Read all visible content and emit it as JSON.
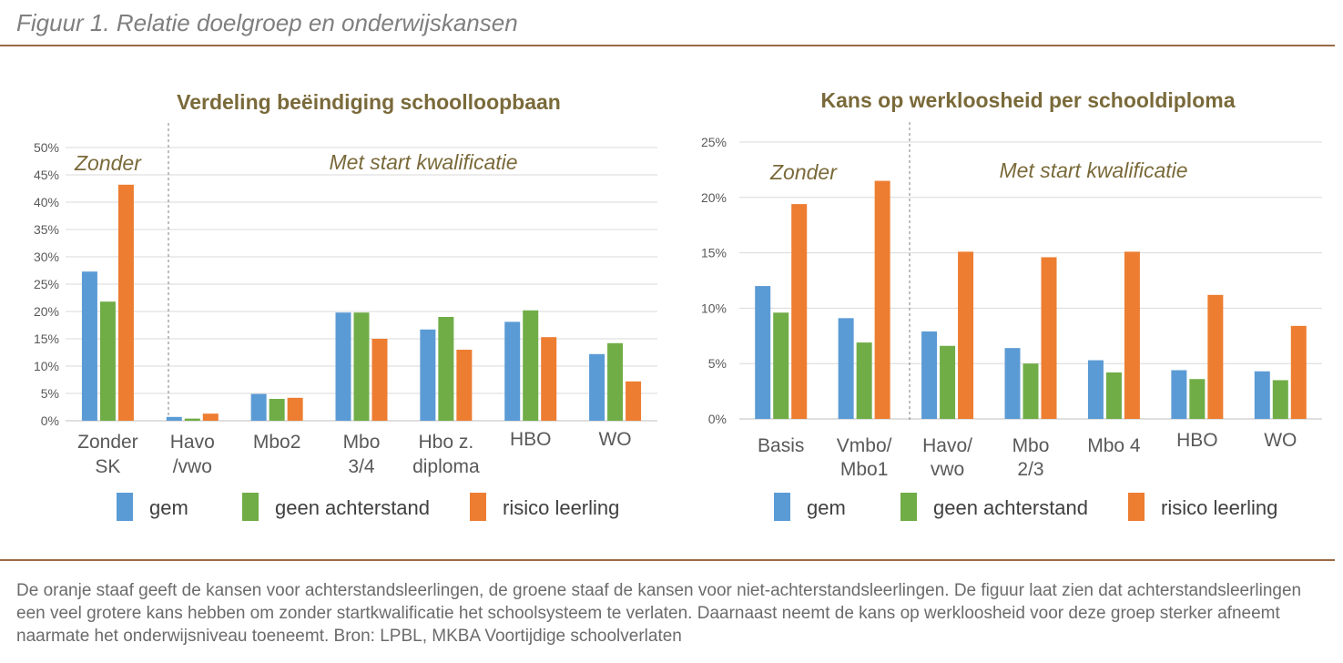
{
  "figure_title": "Figuur 1. Relatie doelgroep en onderwijskansen",
  "caption": "De oranje staaf geeft de kansen voor achterstandsleerlingen, de groene staaf de kansen voor niet-achterstandsleerlingen. De figuur laat zien dat achterstandsleerlingen een veel grotere kans hebben om zonder startkwalificatie het schoolsysteem te verlaten. Daarnaast neemt de kans op werkloosheid voor deze groep sterker afneemt naarmate het onderwijsniveau toeneemt. Bron: LPBL, MKBA Voortijdige schoolverlaten",
  "colors": {
    "gem": "#5b9bd5",
    "geen_achterstand": "#70ad47",
    "risico_leerling": "#ed7d31"
  },
  "chart_data": [
    {
      "type": "bar",
      "title": "Verdeling beëindiging schoolloopbaan",
      "categories": [
        [
          "Zonder",
          "SK"
        ],
        [
          "Havo",
          "/vwo"
        ],
        [
          "Mbo2"
        ],
        [
          "Mbo",
          "3/4"
        ],
        [
          "Hbo z.",
          "diploma"
        ],
        [
          "HBO"
        ],
        [
          "WO"
        ]
      ],
      "series": [
        {
          "name": "gem",
          "values": [
            27.3,
            0.7,
            4.9,
            19.8,
            16.7,
            18.1,
            12.2
          ]
        },
        {
          "name": "geen achterstand",
          "values": [
            21.8,
            0.4,
            4.0,
            19.8,
            19.0,
            20.2,
            14.2
          ]
        },
        {
          "name": "risico leerling",
          "values": [
            43.2,
            1.3,
            4.2,
            15.0,
            13.0,
            15.3,
            7.2
          ]
        }
      ],
      "ylim": [
        0,
        50
      ],
      "yticks": [
        "0%",
        "5%",
        "10%",
        "15%",
        "20%",
        "25%",
        "30%",
        "35%",
        "40%",
        "45%",
        "50%"
      ],
      "group_labels": [
        "Zonder",
        "Met start kwalificatie"
      ],
      "grid": true,
      "legend": "bottom"
    },
    {
      "type": "bar",
      "title": "Kans op werkloosheid per schooldiploma",
      "categories": [
        [
          "Basis"
        ],
        [
          "Vmbo/",
          "Mbo1"
        ],
        [
          "Havo/",
          "vwo"
        ],
        [
          "Mbo",
          "2/3"
        ],
        [
          "Mbo 4"
        ],
        [
          "HBO"
        ],
        [
          "WO"
        ]
      ],
      "series": [
        {
          "name": "gem",
          "values": [
            12.0,
            9.1,
            7.9,
            6.4,
            5.3,
            4.4,
            4.3
          ]
        },
        {
          "name": "geen achterstand",
          "values": [
            9.6,
            6.9,
            6.6,
            5.0,
            4.2,
            3.6,
            3.5
          ]
        },
        {
          "name": "risico leerling",
          "values": [
            19.4,
            21.5,
            15.1,
            14.6,
            15.1,
            11.2,
            8.4
          ]
        }
      ],
      "ylim": [
        0,
        25
      ],
      "yticks": [
        "0%",
        "5%",
        "10%",
        "15%",
        "20%",
        "25%"
      ],
      "group_labels": [
        "Zonder",
        "Met start kwalificatie"
      ],
      "grid": true,
      "legend": "bottom"
    }
  ]
}
